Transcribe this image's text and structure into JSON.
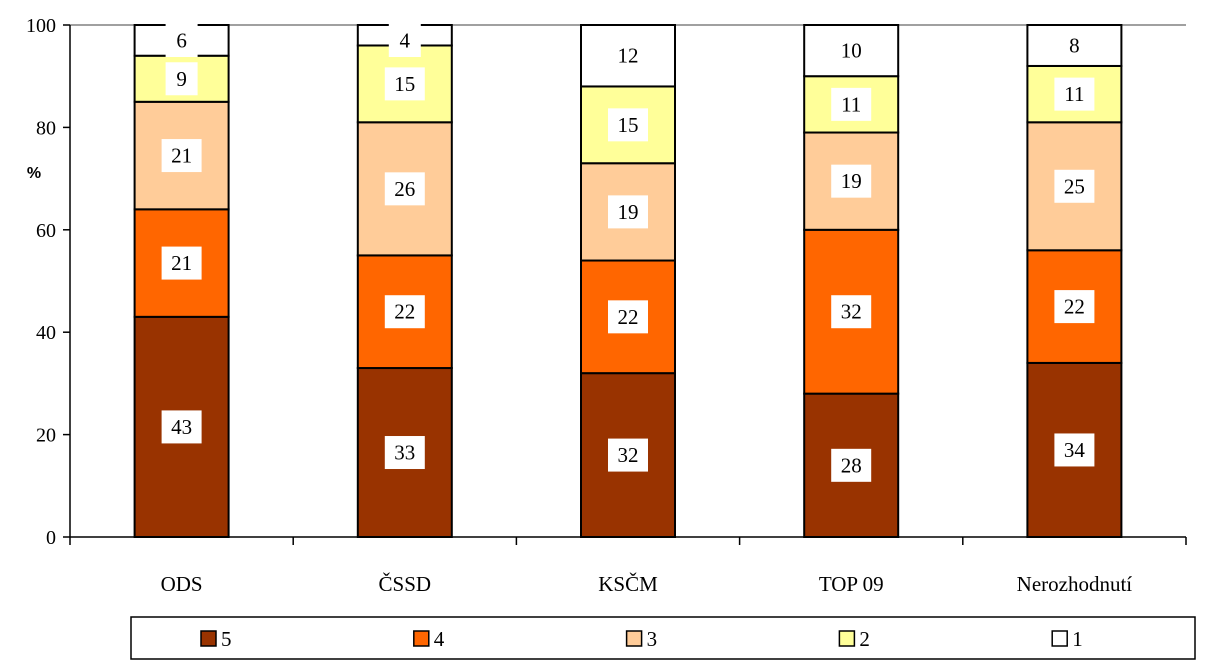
{
  "chart_data": {
    "type": "bar",
    "stacked": true,
    "categories": [
      "ODS",
      "ČSSD",
      "KSČM",
      "TOP 09",
      "Nerozhodnutí"
    ],
    "series": [
      {
        "name": "5",
        "values": [
          43,
          33,
          32,
          28,
          34
        ],
        "color": "#993300"
      },
      {
        "name": "4",
        "values": [
          21,
          22,
          22,
          32,
          22
        ],
        "color": "#ff6600"
      },
      {
        "name": "3",
        "values": [
          21,
          26,
          19,
          19,
          25
        ],
        "color": "#ffcc99"
      },
      {
        "name": "2",
        "values": [
          9,
          15,
          15,
          11,
          11
        ],
        "color": "#ffff99"
      },
      {
        "name": "1",
        "values": [
          6,
          4,
          12,
          10,
          8
        ],
        "color": "#ffffff"
      }
    ],
    "ylabel": "%",
    "ylim": [
      0,
      100
    ],
    "yticks": [
      "0",
      "20",
      "40",
      "60",
      "80",
      "100"
    ],
    "gridline_at_max": true,
    "legend_position": "bottom"
  }
}
